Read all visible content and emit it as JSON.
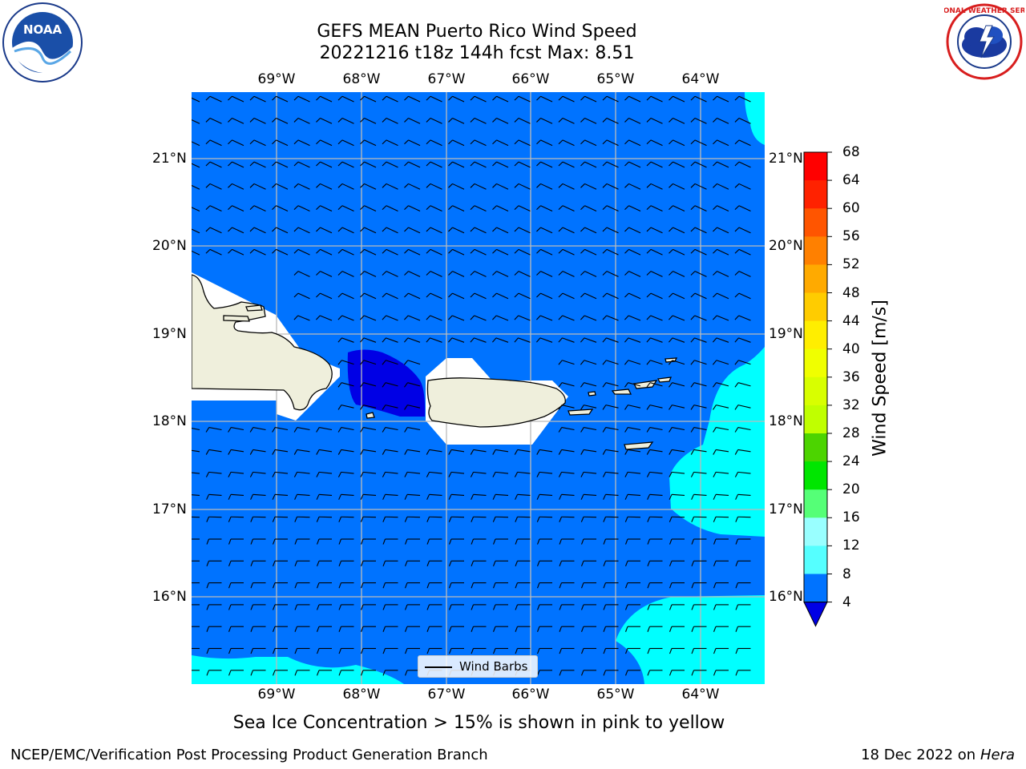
{
  "title": {
    "line1": "GEFS MEAN Puerto Rico Wind Speed",
    "line2": "20221216 t18z 144h fcst   Max: 8.51"
  },
  "map": {
    "lon_labels": [
      "69°W",
      "68°W",
      "67°W",
      "66°W",
      "65°W",
      "64°W"
    ],
    "lat_labels": [
      "21°N",
      "20°N",
      "19°N",
      "18°N",
      "17°N",
      "16°N"
    ],
    "lon_range": [
      -70.0,
      -63.25
    ],
    "lat_range": [
      15.0,
      21.75
    ],
    "legend_label": "Wind Barbs",
    "land_color": "#efefdc",
    "ocean_color": "#0073ff",
    "low_wind_color": "#0000e5",
    "mid_wind_color": "#00ffff",
    "grid_color": "#bbbbbb"
  },
  "colorbar": {
    "label": "Wind Speed [m/s]",
    "ticks": [
      "68",
      "64",
      "60",
      "56",
      "52",
      "48",
      "44",
      "40",
      "36",
      "32",
      "28",
      "24",
      "20",
      "16",
      "12",
      "8",
      "4"
    ],
    "colors": [
      "#ff0000",
      "#ff2200",
      "#ff5500",
      "#ff8000",
      "#ffaa00",
      "#ffcc00",
      "#ffee00",
      "#f0ff00",
      "#d8ff00",
      "#c0ff00",
      "#4cd400",
      "#00e600",
      "#55ff77",
      "#99ffff",
      "#55ffff",
      "#00ffff",
      "#0073ff"
    ],
    "extend_color": "#0000e5"
  },
  "note": "Sea Ice Concentration > 15% is shown in pink to yellow",
  "footer": {
    "left": "NCEP/EMC/Verification Post Processing Product Generation Branch",
    "date": "18 Dec 2022 on",
    "machine": "Hera"
  },
  "logos": {
    "noaa_text": "NOAA",
    "nws_text": "NATIONAL WEATHER SERVICE"
  }
}
